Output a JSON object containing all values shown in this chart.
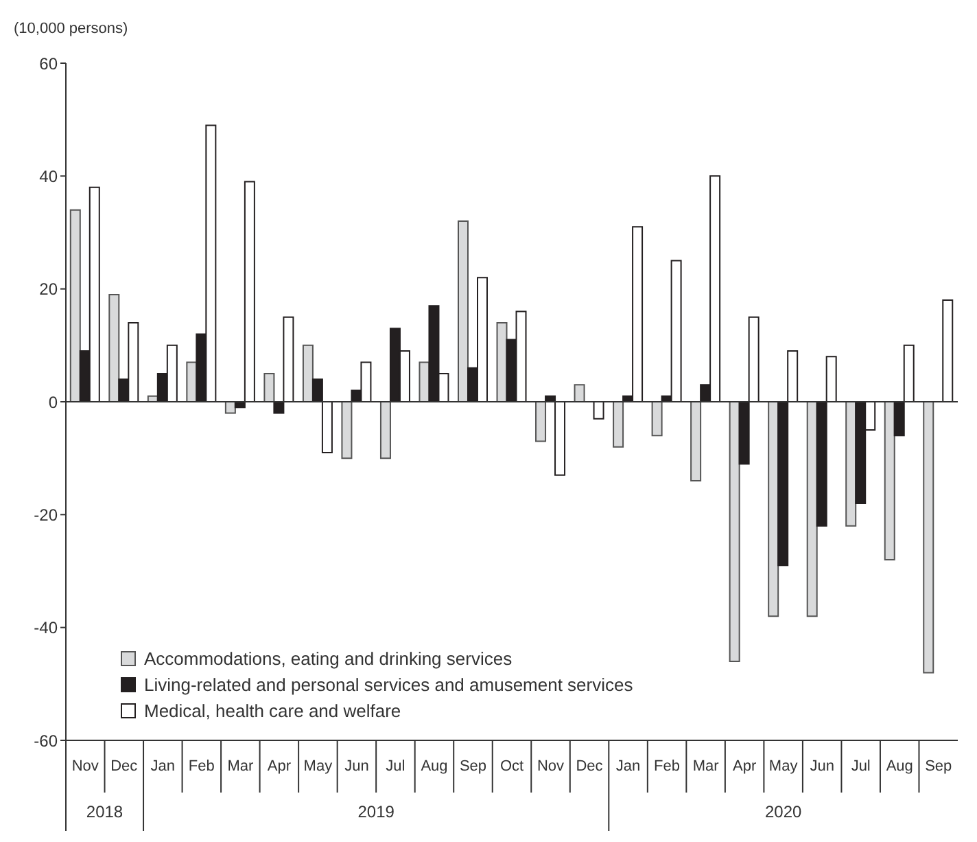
{
  "chart_data": {
    "type": "bar",
    "ylabel": "(10,000 persons)",
    "categories": [
      "Nov",
      "Dec",
      "Jan",
      "Feb",
      "Mar",
      "Apr",
      "May",
      "Jun",
      "Jul",
      "Aug",
      "Sep",
      "Oct",
      "Nov",
      "Dec",
      "Jan",
      "Feb",
      "Mar",
      "Apr",
      "May",
      "Jun",
      "Jul",
      "Aug",
      "Sep"
    ],
    "series": [
      {
        "name": "Accommodations, eating and drinking services",
        "color": "#d9dadb",
        "values": [
          34,
          19,
          1,
          7,
          -2,
          5,
          10,
          -10,
          -10,
          7,
          32,
          14,
          -7,
          3,
          -8,
          -6,
          -14,
          -46,
          -38,
          -38,
          -22,
          -28,
          -48
        ]
      },
      {
        "name": "Living-related and personal services and amusement services",
        "color": "#231f20",
        "values": [
          9,
          4,
          5,
          12,
          -1,
          -2,
          4,
          2,
          13,
          17,
          6,
          11,
          1,
          0,
          1,
          1,
          3,
          -11,
          -29,
          -22,
          -18,
          -6,
          0
        ]
      },
      {
        "name": "Medical, health care and welfare",
        "color": "#ffffff",
        "values": [
          38,
          14,
          10,
          49,
          39,
          15,
          -9,
          7,
          9,
          5,
          22,
          16,
          -13,
          -3,
          31,
          25,
          40,
          15,
          9,
          8,
          -5,
          10,
          18
        ]
      }
    ],
    "ylim": [
      -60,
      60
    ],
    "yticks": [
      -60,
      -40,
      -20,
      0,
      20,
      40,
      60
    ],
    "ref_lines": [
      {
        "axis": "y",
        "value": 0
      }
    ],
    "grid": false,
    "legend": "bottom left",
    "annotations": [
      "2018",
      "2019",
      "2020"
    ]
  }
}
